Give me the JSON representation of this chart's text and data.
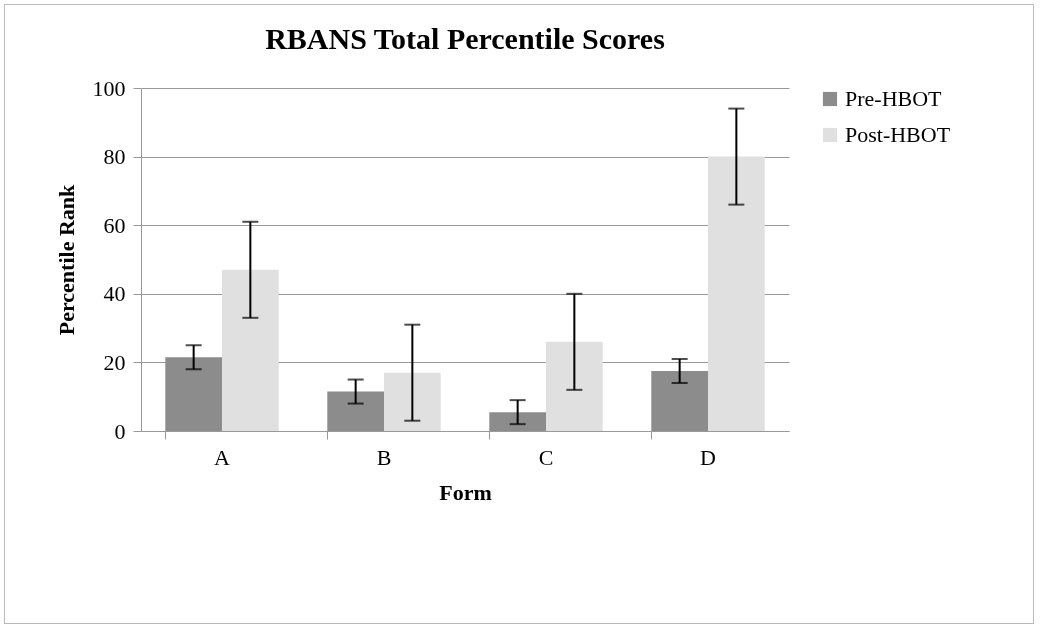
{
  "chart_data": {
    "type": "bar",
    "title": "RBANS Total Percentile Scores",
    "xlabel": "Form",
    "ylabel": "Percentile Rank",
    "categories": [
      "A",
      "B",
      "C",
      "D"
    ],
    "series": [
      {
        "name": "Pre-HBOT",
        "color": "#8c8c8c",
        "values": [
          21.5,
          11.5,
          5.5,
          17.5
        ],
        "errors": [
          3.5,
          3.5,
          3.5,
          3.5
        ]
      },
      {
        "name": "Post-HBOT",
        "color": "#e0e0e0",
        "values": [
          47,
          17,
          26,
          80
        ],
        "errors": [
          14,
          14,
          14,
          14
        ]
      }
    ],
    "ylim": [
      0,
      100
    ],
    "yticks": [
      0,
      20,
      40,
      60,
      80,
      100
    ],
    "grid": "y",
    "legend": "right"
  }
}
